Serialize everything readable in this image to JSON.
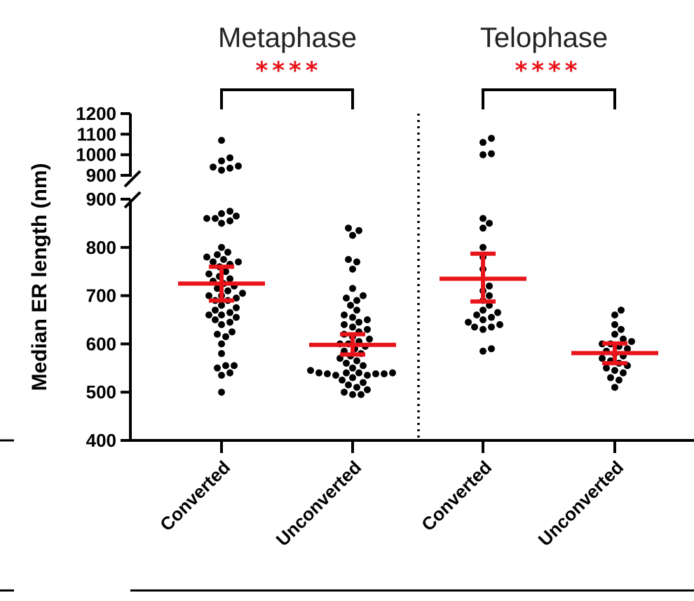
{
  "chart_data": {
    "type": "scatter",
    "ylabel": "Median ER length (nm)",
    "yaxis": {
      "lower_ticks": [
        400,
        500,
        600,
        700,
        800,
        900
      ],
      "upper_ticks": [
        900,
        1000,
        1100,
        1200
      ],
      "lower_range": [
        400,
        900
      ],
      "upper_range": [
        900,
        1200
      ],
      "break_at": 900
    },
    "groups": [
      {
        "title": "Metaphase",
        "significance": "****",
        "categories": [
          "Converted",
          "Unconverted"
        ]
      },
      {
        "title": "Telophase",
        "significance": "****",
        "categories": [
          "Converted",
          "Unconverted"
        ]
      }
    ],
    "series": [
      {
        "group": "Metaphase",
        "category": "Converted",
        "mean": 725,
        "ci": [
          690,
          760
        ],
        "values": [
          1070,
          985,
          970,
          945,
          940,
          935,
          925,
          875,
          870,
          865,
          860,
          860,
          855,
          850,
          800,
          790,
          785,
          780,
          775,
          770,
          770,
          765,
          760,
          750,
          745,
          740,
          735,
          730,
          725,
          720,
          715,
          710,
          705,
          700,
          700,
          695,
          690,
          690,
          680,
          675,
          670,
          665,
          660,
          660,
          655,
          650,
          645,
          640,
          625,
          620,
          615,
          600,
          580,
          555,
          555,
          550,
          540,
          535,
          500
        ]
      },
      {
        "group": "Metaphase",
        "category": "Unconverted",
        "mean": 598,
        "ci": [
          578,
          620
        ],
        "values": [
          840,
          835,
          825,
          775,
          770,
          755,
          715,
          700,
          695,
          690,
          680,
          670,
          660,
          655,
          650,
          645,
          640,
          635,
          630,
          625,
          620,
          615,
          610,
          605,
          600,
          600,
          595,
          590,
          585,
          580,
          575,
          570,
          565,
          560,
          555,
          550,
          545,
          540,
          540,
          540,
          540,
          538,
          538,
          538,
          535,
          535,
          530,
          525,
          520,
          515,
          510,
          505,
          500,
          495,
          495
        ]
      },
      {
        "group": "Telophase",
        "category": "Converted",
        "mean": 735,
        "ci": [
          688,
          787
        ],
        "values": [
          1080,
          1060,
          1005,
          1000,
          860,
          850,
          840,
          800,
          780,
          755,
          720,
          710,
          700,
          690,
          680,
          670,
          665,
          660,
          655,
          650,
          645,
          640,
          635,
          635,
          630,
          590,
          585
        ]
      },
      {
        "group": "Telophase",
        "category": "Unconverted",
        "mean": 581,
        "ci": [
          560,
          601
        ],
        "values": [
          670,
          660,
          640,
          630,
          620,
          610,
          605,
          600,
          600,
          595,
          590,
          585,
          580,
          575,
          570,
          565,
          560,
          555,
          550,
          545,
          540,
          530,
          525,
          510
        ]
      }
    ]
  }
}
